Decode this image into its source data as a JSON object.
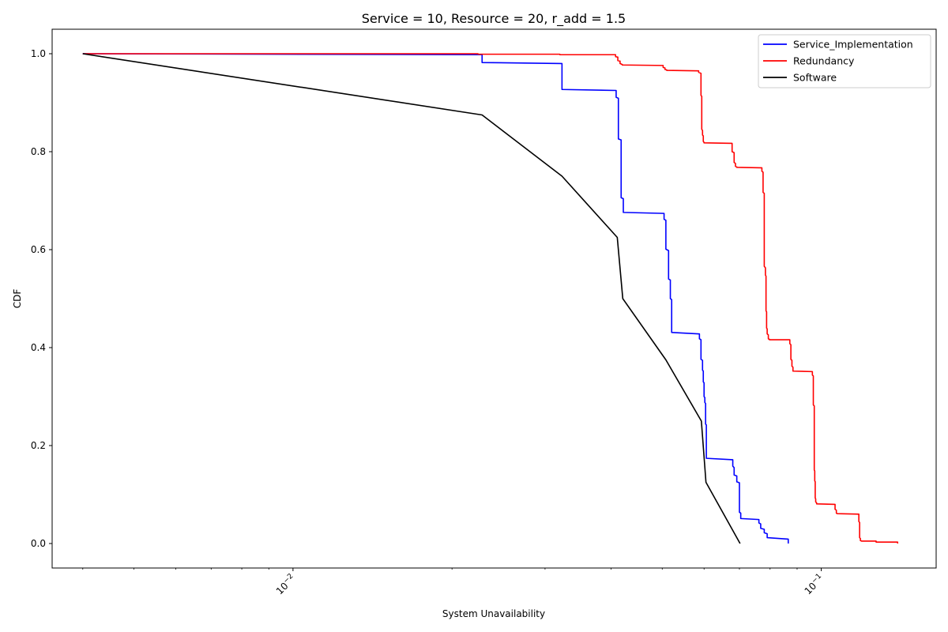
{
  "chart_data": {
    "type": "line",
    "title": "Service = 10, Resource = 20, r_add = 1.5",
    "xlabel": "System Unavailability",
    "ylabel": "CDF",
    "x_scale": "log",
    "xlim": [
      0.0035,
      0.165
    ],
    "ylim": [
      -0.05,
      1.05
    ],
    "x_tick_labels": [
      "10^-2",
      "10^-1"
    ],
    "y_ticks": [
      0.0,
      0.2,
      0.4,
      0.6,
      0.8,
      1.0
    ],
    "y_tick_labels": [
      "0.0",
      "0.2",
      "0.4",
      "0.6",
      "0.8",
      "1.0"
    ],
    "grid": false,
    "legend_position": "top-right",
    "series": [
      {
        "name": "Service_Implementation",
        "color": "#0000ff",
        "step": true,
        "points": [
          [
            0.004,
            1.0
          ],
          [
            0.0228,
            0.998
          ],
          [
            0.0228,
            0.982
          ],
          [
            0.0323,
            0.98
          ],
          [
            0.0323,
            0.927
          ],
          [
            0.0409,
            0.925
          ],
          [
            0.0409,
            0.911
          ],
          [
            0.0413,
            0.909
          ],
          [
            0.0413,
            0.826
          ],
          [
            0.0418,
            0.824
          ],
          [
            0.0418,
            0.706
          ],
          [
            0.0422,
            0.704
          ],
          [
            0.0422,
            0.676
          ],
          [
            0.0504,
            0.674
          ],
          [
            0.0504,
            0.662
          ],
          [
            0.0508,
            0.66
          ],
          [
            0.0508,
            0.601
          ],
          [
            0.0514,
            0.598
          ],
          [
            0.0514,
            0.54
          ],
          [
            0.0518,
            0.538
          ],
          [
            0.0518,
            0.5
          ],
          [
            0.0521,
            0.498
          ],
          [
            0.0521,
            0.431
          ],
          [
            0.0588,
            0.428
          ],
          [
            0.0588,
            0.418
          ],
          [
            0.0592,
            0.416
          ],
          [
            0.0592,
            0.376
          ],
          [
            0.0596,
            0.374
          ],
          [
            0.0596,
            0.354
          ],
          [
            0.0598,
            0.352
          ],
          [
            0.0598,
            0.33
          ],
          [
            0.06,
            0.328
          ],
          [
            0.06,
            0.3
          ],
          [
            0.0602,
            0.298
          ],
          [
            0.0602,
            0.288
          ],
          [
            0.0604,
            0.286
          ],
          [
            0.0604,
            0.244
          ],
          [
            0.0606,
            0.242
          ],
          [
            0.0606,
            0.174
          ],
          [
            0.068,
            0.171
          ],
          [
            0.068,
            0.158
          ],
          [
            0.0684,
            0.155
          ],
          [
            0.0684,
            0.14
          ],
          [
            0.0692,
            0.138
          ],
          [
            0.0692,
            0.126
          ],
          [
            0.07,
            0.124
          ],
          [
            0.07,
            0.064
          ],
          [
            0.0704,
            0.062
          ],
          [
            0.0704,
            0.051
          ],
          [
            0.0762,
            0.049
          ],
          [
            0.0762,
            0.042
          ],
          [
            0.0768,
            0.04
          ],
          [
            0.0768,
            0.031
          ],
          [
            0.078,
            0.029
          ],
          [
            0.078,
            0.022
          ],
          [
            0.079,
            0.02
          ],
          [
            0.079,
            0.012
          ],
          [
            0.0866,
            0.009
          ],
          [
            0.0866,
            0.0
          ]
        ]
      },
      {
        "name": "Redundancy",
        "color": "#ff0000",
        "step": true,
        "points": [
          [
            0.004,
            1.0
          ],
          [
            0.0224,
            1.0
          ],
          [
            0.0224,
            0.999
          ],
          [
            0.032,
            0.999
          ],
          [
            0.032,
            0.998
          ],
          [
            0.0408,
            0.998
          ],
          [
            0.0408,
            0.994
          ],
          [
            0.0412,
            0.993
          ],
          [
            0.0412,
            0.986
          ],
          [
            0.0416,
            0.985
          ],
          [
            0.0416,
            0.98
          ],
          [
            0.042,
            0.978
          ],
          [
            0.042,
            0.977
          ],
          [
            0.0502,
            0.976
          ],
          [
            0.0502,
            0.972
          ],
          [
            0.0506,
            0.971
          ],
          [
            0.0506,
            0.968
          ],
          [
            0.051,
            0.967
          ],
          [
            0.051,
            0.966
          ],
          [
            0.0586,
            0.965
          ],
          [
            0.0586,
            0.962
          ],
          [
            0.0592,
            0.96
          ],
          [
            0.0592,
            0.915
          ],
          [
            0.0594,
            0.913
          ],
          [
            0.0594,
            0.846
          ],
          [
            0.0596,
            0.843
          ],
          [
            0.0596,
            0.834
          ],
          [
            0.0598,
            0.832
          ],
          [
            0.0598,
            0.821
          ],
          [
            0.06,
            0.819
          ],
          [
            0.06,
            0.818
          ],
          [
            0.0678,
            0.817
          ],
          [
            0.0678,
            0.8
          ],
          [
            0.0684,
            0.798
          ],
          [
            0.0684,
            0.778
          ],
          [
            0.0688,
            0.776
          ],
          [
            0.0688,
            0.77
          ],
          [
            0.0692,
            0.769
          ],
          [
            0.0692,
            0.768
          ],
          [
            0.0772,
            0.767
          ],
          [
            0.0772,
            0.76
          ],
          [
            0.0776,
            0.758
          ],
          [
            0.0776,
            0.717
          ],
          [
            0.078,
            0.715
          ],
          [
            0.078,
            0.566
          ],
          [
            0.0784,
            0.563
          ],
          [
            0.0784,
            0.548
          ],
          [
            0.0786,
            0.546
          ],
          [
            0.0786,
            0.475
          ],
          [
            0.0788,
            0.473
          ],
          [
            0.0788,
            0.44
          ],
          [
            0.079,
            0.438
          ],
          [
            0.079,
            0.428
          ],
          [
            0.0794,
            0.426
          ],
          [
            0.0794,
            0.418
          ],
          [
            0.0798,
            0.417
          ],
          [
            0.0798,
            0.416
          ],
          [
            0.0872,
            0.416
          ],
          [
            0.0872,
            0.408
          ],
          [
            0.0876,
            0.406
          ],
          [
            0.0876,
            0.376
          ],
          [
            0.088,
            0.374
          ],
          [
            0.088,
            0.362
          ],
          [
            0.0884,
            0.36
          ],
          [
            0.0884,
            0.352
          ],
          [
            0.0962,
            0.351
          ],
          [
            0.0962,
            0.344
          ],
          [
            0.0966,
            0.342
          ],
          [
            0.0966,
            0.283
          ],
          [
            0.097,
            0.281
          ],
          [
            0.097,
            0.15
          ],
          [
            0.0972,
            0.148
          ],
          [
            0.0972,
            0.128
          ],
          [
            0.0974,
            0.126
          ],
          [
            0.0974,
            0.093
          ],
          [
            0.0976,
            0.091
          ],
          [
            0.0976,
            0.085
          ],
          [
            0.098,
            0.083
          ],
          [
            0.098,
            0.081
          ],
          [
            0.1062,
            0.08
          ],
          [
            0.1062,
            0.07
          ],
          [
            0.1068,
            0.068
          ],
          [
            0.1068,
            0.062
          ],
          [
            0.1072,
            0.061
          ],
          [
            0.1072,
            0.061
          ],
          [
            0.1178,
            0.06
          ],
          [
            0.1178,
            0.045
          ],
          [
            0.1182,
            0.043
          ],
          [
            0.1182,
            0.012
          ],
          [
            0.1186,
            0.01
          ],
          [
            0.1186,
            0.006
          ],
          [
            0.1192,
            0.005
          ],
          [
            0.1192,
            0.005
          ],
          [
            0.127,
            0.005
          ],
          [
            0.127,
            0.003
          ],
          [
            0.1395,
            0.003
          ],
          [
            0.1395,
            0.0
          ]
        ]
      },
      {
        "name": "Software",
        "color": "#000000",
        "step": false,
        "points": [
          [
            0.004,
            1.0
          ],
          [
            0.0228,
            0.875
          ],
          [
            0.0323,
            0.75
          ],
          [
            0.0411,
            0.625
          ],
          [
            0.0421,
            0.5
          ],
          [
            0.0508,
            0.375
          ],
          [
            0.0593,
            0.25
          ],
          [
            0.0605,
            0.125
          ],
          [
            0.0702,
            0.0
          ]
        ]
      }
    ]
  }
}
